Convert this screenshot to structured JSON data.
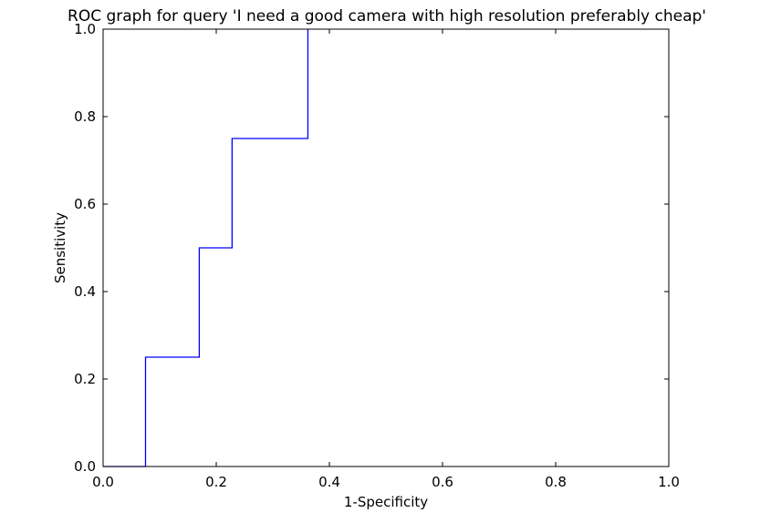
{
  "chart_data": {
    "type": "line",
    "title": "ROC graph for query 'I need a good camera with high resolution preferably cheap'",
    "xlabel": "1-Specificity",
    "ylabel": "Sensitivity",
    "xlim": [
      0.0,
      1.0
    ],
    "ylim": [
      0.0,
      1.0
    ],
    "grid": false,
    "legend": "none",
    "x_ticks": [
      "0.0",
      "0.2",
      "0.4",
      "0.6",
      "0.8",
      "1.0"
    ],
    "y_ticks": [
      "0.0",
      "0.2",
      "0.4",
      "0.6",
      "0.8",
      "1.0"
    ],
    "series": [
      {
        "color": "#0000ff",
        "x": [
          0.0,
          0.075,
          0.075,
          0.17,
          0.17,
          0.228,
          0.228,
          0.362,
          0.362
        ],
        "y": [
          0.0,
          0.0,
          0.25,
          0.25,
          0.5,
          0.5,
          0.75,
          0.75,
          1.0
        ]
      }
    ]
  }
}
